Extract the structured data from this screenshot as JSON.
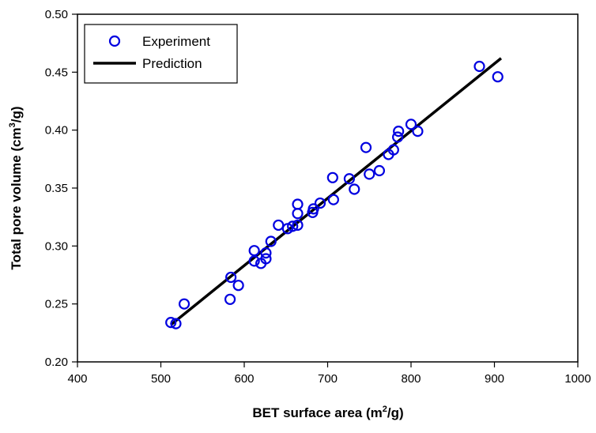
{
  "chart_data": {
    "type": "scatter",
    "title": "",
    "xlabel": "BET surface area (m",
    "xlabel_sup": "2",
    "xlabel_tail": "/g)",
    "ylabel": "Total pore volume (cm",
    "ylabel_sup": "3",
    "ylabel_tail": "/g)",
    "xlim": [
      400,
      1000
    ],
    "ylim": [
      0.2,
      0.5
    ],
    "xticks": [
      "400",
      "500",
      "600",
      "700",
      "800",
      "900",
      "1000"
    ],
    "xtick_values": [
      400,
      500,
      600,
      700,
      800,
      900,
      1000
    ],
    "yticks": [
      "0.20",
      "0.25",
      "0.30",
      "0.35",
      "0.40",
      "0.45",
      "0.50"
    ],
    "ytick_values": [
      0.2,
      0.25,
      0.3,
      0.35,
      0.4,
      0.45,
      0.5
    ],
    "grid": false,
    "legend_position": "top-left",
    "series": [
      {
        "name": "Experiment",
        "kind": "scatter",
        "color": "#0000e0",
        "x": [
          512,
          518,
          528,
          584,
          583,
          593,
          612,
          612,
          620,
          626,
          626,
          632,
          641,
          652,
          658,
          664,
          664,
          664,
          682,
          683,
          691,
          706,
          707,
          726,
          732,
          746,
          750,
          762,
          773,
          779,
          784,
          785,
          800,
          808,
          882,
          904
        ],
        "y": [
          0.234,
          0.233,
          0.25,
          0.273,
          0.254,
          0.266,
          0.296,
          0.287,
          0.285,
          0.294,
          0.289,
          0.304,
          0.318,
          0.315,
          0.317,
          0.318,
          0.328,
          0.336,
          0.329,
          0.332,
          0.337,
          0.359,
          0.34,
          0.358,
          0.349,
          0.385,
          0.362,
          0.365,
          0.379,
          0.383,
          0.394,
          0.399,
          0.405,
          0.399,
          0.455,
          0.446
        ]
      },
      {
        "name": "Prediction",
        "kind": "line",
        "color": "#000000",
        "x": [
          512,
          908
        ],
        "y": [
          0.232,
          0.462
        ]
      }
    ]
  }
}
